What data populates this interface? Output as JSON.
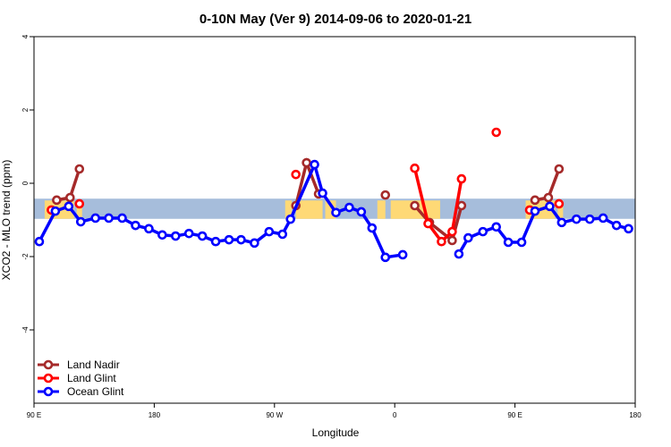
{
  "chart_data": {
    "type": "line",
    "title": "0-10N May (Ver 9)   2014-09-06 to 2020-01-21",
    "xlabel": "Longitude",
    "ylabel": "XCO2 - MLO trend (ppm)",
    "xlim": [
      90,
      540
    ],
    "ylim": [
      -6,
      4
    ],
    "x_ticks": [
      {
        "value": 90,
        "label": "90 E"
      },
      {
        "value": 180,
        "label": "180"
      },
      {
        "value": 270,
        "label": "90 W"
      },
      {
        "value": 360,
        "label": "0"
      },
      {
        "value": 450,
        "label": "90 E"
      },
      {
        "value": 540,
        "label": "180"
      }
    ],
    "y_ticks": [
      {
        "value": 4,
        "label": "4"
      },
      {
        "value": 2,
        "label": "2"
      },
      {
        "value": 0,
        "label": "0"
      },
      {
        "value": -2,
        "label": "-2"
      },
      {
        "value": -4,
        "label": "-4"
      }
    ],
    "band": {
      "ymin": -0.97,
      "ymax": -0.42,
      "ocean_color": "#A6BDDB",
      "land_color": "#FED976"
    },
    "legend": {
      "position": "bottom-left"
    },
    "grid": false,
    "series": [
      {
        "name": "Land Nadir",
        "color": "#A52A2A",
        "segments": [
          [
            [
              107,
              -0.46
            ],
            [
              117,
              -0.39
            ],
            [
              124,
              0.39
            ]
          ],
          [
            [
              286,
              -0.61
            ],
            [
              294,
              0.56
            ],
            [
              303,
              -0.29
            ]
          ],
          [
            [
              353,
              -0.32
            ]
          ],
          [
            [
              375,
              -0.61
            ],
            [
              386,
              -1.07
            ],
            [
              403,
              -1.56
            ],
            [
              410,
              -0.61
            ]
          ],
          [
            [
              465,
              -0.46
            ],
            [
              475,
              -0.39
            ],
            [
              483,
              0.39
            ]
          ]
        ]
      },
      {
        "name": "Land Glint",
        "color": "#FF0000",
        "segments": [
          [
            [
              103,
              -0.73
            ]
          ],
          [
            [
              124,
              -0.56
            ]
          ],
          [
            [
              286,
              0.24
            ]
          ],
          [
            [
              375,
              0.41
            ],
            [
              385,
              -1.1
            ],
            [
              395,
              -1.59
            ],
            [
              403,
              -1.32
            ],
            [
              410,
              0.12
            ]
          ],
          [
            [
              436,
              1.39
            ]
          ],
          [
            [
              461,
              -0.73
            ]
          ],
          [
            [
              483,
              -0.56
            ]
          ]
        ]
      },
      {
        "name": "Ocean Glint",
        "color": "#0000FF",
        "segments": [
          [
            [
              94,
              -1.59
            ],
            [
              106,
              -0.76
            ],
            [
              116,
              -0.63
            ],
            [
              125,
              -1.05
            ],
            [
              136,
              -0.95
            ],
            [
              146,
              -0.95
            ],
            [
              156,
              -0.95
            ],
            [
              166,
              -1.15
            ],
            [
              176,
              -1.24
            ],
            [
              186,
              -1.41
            ],
            [
              196,
              -1.44
            ],
            [
              206,
              -1.37
            ],
            [
              216,
              -1.44
            ],
            [
              226,
              -1.59
            ],
            [
              236,
              -1.54
            ],
            [
              245,
              -1.54
            ],
            [
              255,
              -1.63
            ],
            [
              266,
              -1.32
            ],
            [
              276,
              -1.39
            ],
            [
              282,
              -0.98
            ],
            [
              300,
              0.51
            ],
            [
              306,
              -0.27
            ],
            [
              316,
              -0.8
            ],
            [
              326,
              -0.66
            ],
            [
              335,
              -0.78
            ],
            [
              343,
              -1.22
            ],
            [
              353,
              -2.02
            ],
            [
              366,
              -1.95
            ]
          ],
          [
            [
              408,
              -1.93
            ],
            [
              415,
              -1.49
            ],
            [
              426,
              -1.32
            ],
            [
              436,
              -1.19
            ],
            [
              445,
              -1.61
            ],
            [
              455,
              -1.61
            ],
            [
              465,
              -0.76
            ],
            [
              476,
              -0.63
            ],
            [
              485,
              -1.07
            ],
            [
              496,
              -0.98
            ],
            [
              506,
              -0.98
            ],
            [
              516,
              -0.95
            ],
            [
              526,
              -1.15
            ],
            [
              535,
              -1.24
            ]
          ]
        ]
      }
    ],
    "land_spans": [
      [
        98,
        120
      ],
      [
        122,
        126
      ],
      [
        278,
        283
      ],
      [
        286,
        306
      ],
      [
        308,
        316
      ],
      [
        347,
        353
      ],
      [
        357,
        394
      ],
      [
        458,
        480
      ],
      [
        482,
        486
      ]
    ]
  }
}
